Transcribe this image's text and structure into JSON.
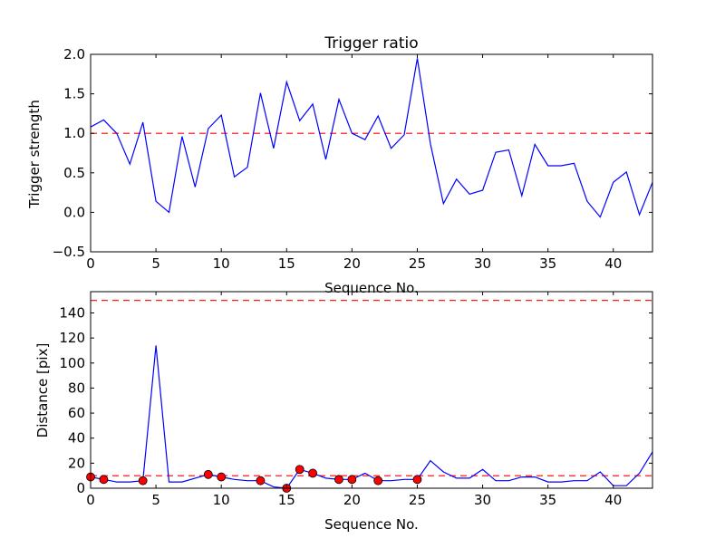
{
  "chart_data": [
    {
      "type": "line",
      "title": "Trigger ratio",
      "xlabel": "Sequence No.",
      "ylabel": "Trigger strength",
      "xlim": [
        0,
        43
      ],
      "ylim": [
        -0.5,
        2.0
      ],
      "xticks": [
        0,
        5,
        10,
        15,
        20,
        25,
        30,
        35,
        40
      ],
      "yticks": [
        -0.5,
        0.0,
        0.5,
        1.0,
        1.5,
        2.0
      ],
      "ytick_labels": [
        "−0.5",
        "0.0",
        "0.5",
        "1.0",
        "1.5",
        "2.0"
      ],
      "threshold": 1.0,
      "line_color": "#0000ff",
      "threshold_color": "#ff0000",
      "x": [
        0,
        1,
        2,
        3,
        4,
        5,
        6,
        7,
        8,
        9,
        10,
        11,
        12,
        13,
        14,
        15,
        16,
        17,
        18,
        19,
        20,
        21,
        22,
        23,
        24,
        25,
        26,
        27,
        28,
        29,
        30,
        31,
        32,
        33,
        34,
        35,
        36,
        37,
        38,
        39,
        40,
        41,
        42,
        43
      ],
      "values": [
        1.08,
        1.17,
        1.0,
        0.61,
        1.14,
        0.14,
        0.0,
        0.96,
        0.32,
        1.06,
        1.23,
        0.45,
        0.57,
        1.51,
        0.81,
        1.65,
        1.16,
        1.37,
        0.67,
        1.43,
        1.0,
        0.92,
        1.22,
        0.81,
        0.98,
        1.95,
        0.87,
        0.11,
        0.42,
        0.23,
        0.28,
        0.76,
        0.79,
        0.21,
        0.86,
        0.59,
        0.59,
        0.62,
        0.14,
        -0.06,
        0.38,
        0.51,
        -0.03,
        0.38
      ]
    },
    {
      "type": "line",
      "title": "",
      "xlabel": "Sequence No.",
      "ylabel": "Distance [pix]",
      "xlim": [
        0,
        43
      ],
      "ylim": [
        0,
        157
      ],
      "xticks": [
        0,
        5,
        10,
        15,
        20,
        25,
        30,
        35,
        40
      ],
      "yticks": [
        0,
        20,
        40,
        60,
        80,
        100,
        120,
        140
      ],
      "ytick_labels": [
        "0",
        "20",
        "40",
        "60",
        "80",
        "100",
        "120",
        "140"
      ],
      "thresholds": [
        10,
        150
      ],
      "line_color": "#0000ff",
      "threshold_color": "#ff0000",
      "marker_color": "#ff0000",
      "x": [
        0,
        1,
        2,
        3,
        4,
        5,
        6,
        7,
        8,
        9,
        10,
        11,
        12,
        13,
        14,
        15,
        16,
        17,
        18,
        19,
        20,
        21,
        22,
        23,
        24,
        25,
        26,
        27,
        28,
        29,
        30,
        31,
        32,
        33,
        34,
        35,
        36,
        37,
        38,
        39,
        40,
        41,
        42,
        43
      ],
      "values": [
        9,
        7,
        5,
        5,
        6,
        114,
        5,
        5,
        8,
        11,
        9,
        7,
        6,
        6,
        1,
        0,
        15,
        12,
        8,
        7,
        7,
        12,
        6,
        6,
        7,
        7,
        22,
        13,
        8,
        8,
        15,
        6,
        6,
        9,
        9,
        5,
        5,
        6,
        6,
        13,
        2,
        2,
        12,
        29
      ],
      "marked_x": [
        0,
        1,
        4,
        9,
        10,
        13,
        15,
        16,
        17,
        19,
        20,
        22,
        25
      ]
    }
  ]
}
